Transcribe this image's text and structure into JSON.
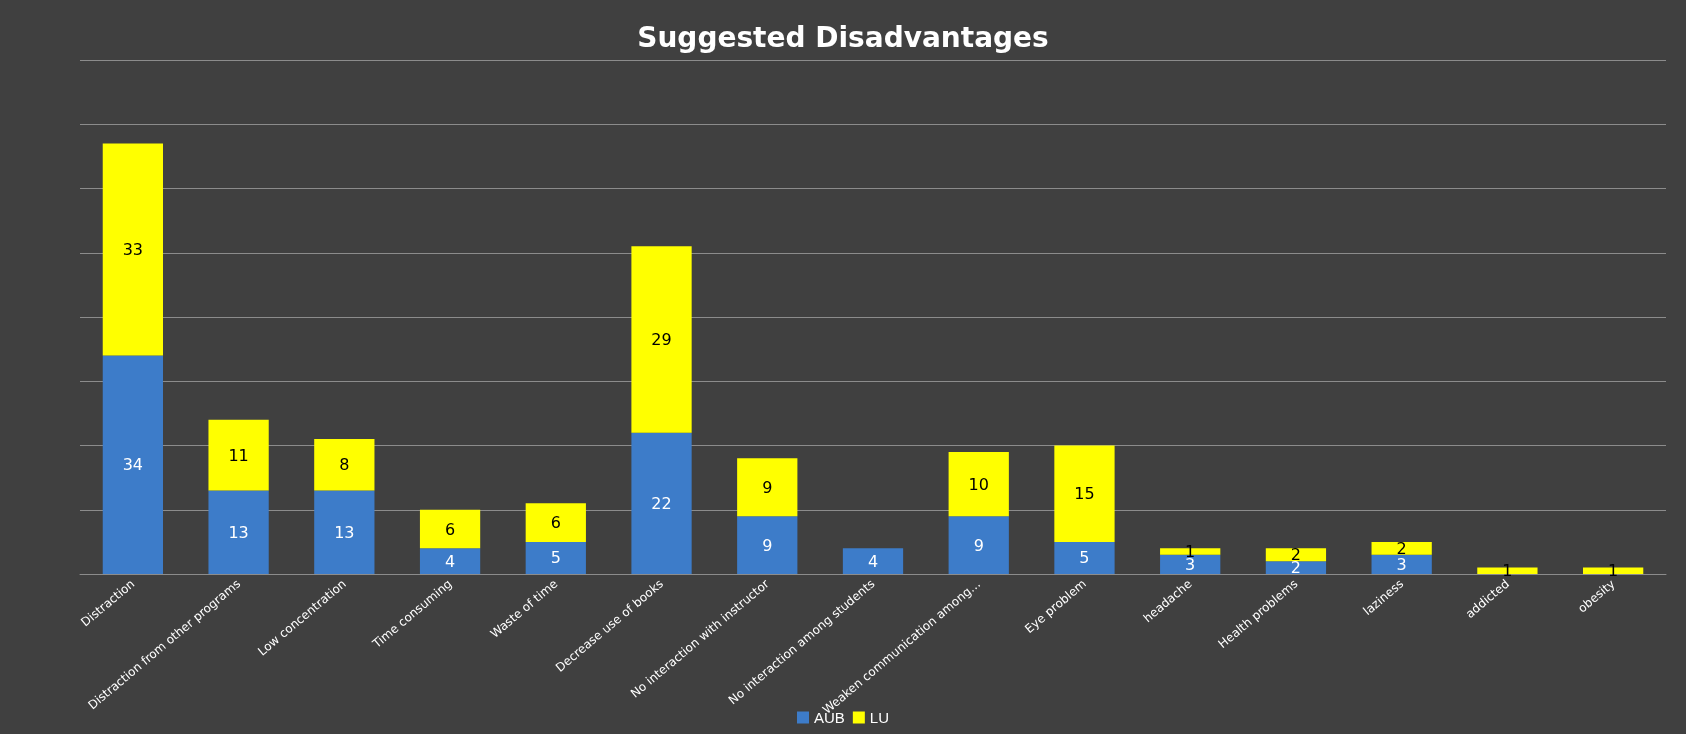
{
  "chart_data": {
    "type": "bar",
    "title": "Suggested Disadvantages",
    "stacked": true,
    "data_labels": true,
    "grid": "y",
    "legend": "bottom",
    "tick_labels": "x",
    "categories": [
      "Distraction",
      "Distraction from other programs",
      "Low concentration",
      "Time consuming",
      "Waste of time",
      "Decrease use of books",
      "No interaction with instructor",
      "No interaction among students",
      "Weaken communication among…",
      "Eye problem",
      "headache",
      "Health problems",
      "laziness",
      "addicted",
      "obesity"
    ],
    "ylim": [
      0,
      80
    ],
    "yticks": [
      {
        "value": 0,
        "label": null
      },
      {
        "value": 10,
        "label": null
      },
      {
        "value": 20,
        "label": null
      },
      {
        "value": 30,
        "label": null
      },
      {
        "value": 40,
        "label": null
      },
      {
        "value": 50,
        "label": null
      },
      {
        "value": 60,
        "label": null
      },
      {
        "value": 70,
        "label": null
      },
      {
        "value": 80,
        "label": null
      }
    ],
    "series": [
      {
        "name": "AUB",
        "color": "#3d7cc9",
        "values": [
          34,
          13,
          13,
          4,
          5,
          22,
          9,
          4,
          9,
          5,
          3,
          2,
          3,
          null,
          null
        ]
      },
      {
        "name": "LU",
        "color": "#ffff00",
        "values": [
          33,
          11,
          8,
          6,
          6,
          29,
          9,
          null,
          10,
          15,
          1,
          2,
          2,
          1,
          1
        ]
      }
    ]
  }
}
